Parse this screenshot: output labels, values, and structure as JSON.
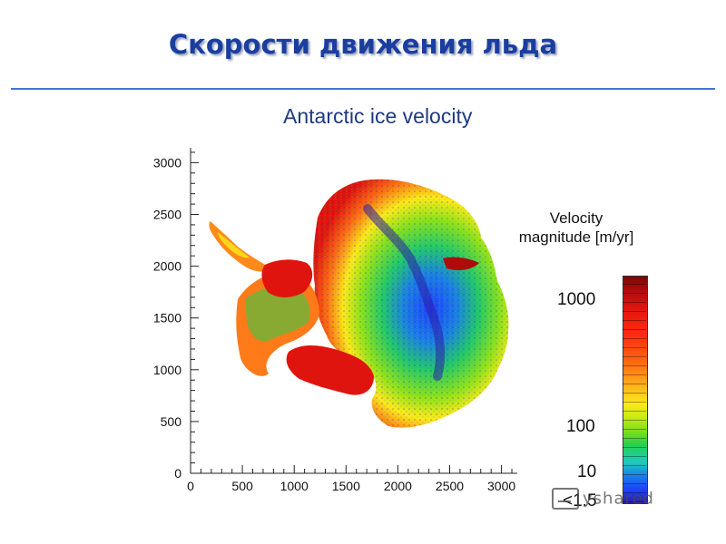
{
  "slide": {
    "title": "Скорости движения льда"
  },
  "figure": {
    "title": "Antarctic ice velocity"
  },
  "map_axes": {
    "x_ticks": [
      "0",
      "500",
      "1000",
      "1500",
      "2000",
      "2500",
      "3000"
    ],
    "y_ticks": [
      "0",
      "500",
      "1000",
      "1500",
      "2000",
      "2500",
      "3000"
    ],
    "x_range": [
      0,
      3100
    ],
    "y_range": [
      0,
      3100
    ]
  },
  "colorbar": {
    "title_line1": "Velocity",
    "title_line2": "magnitude [m/yr]",
    "labels": [
      "1000",
      "100",
      "10",
      "<1.5"
    ],
    "scale": "logarithmic",
    "colors": [
      "#2a1fa6",
      "#1f40ff",
      "#1fc9c0",
      "#26d24a",
      "#c8ea16",
      "#ffe91a",
      "#ff6a14",
      "#e0140e",
      "#7a0707"
    ]
  },
  "watermark": {
    "icon": "presentation-board-icon",
    "text": "yshared"
  }
}
